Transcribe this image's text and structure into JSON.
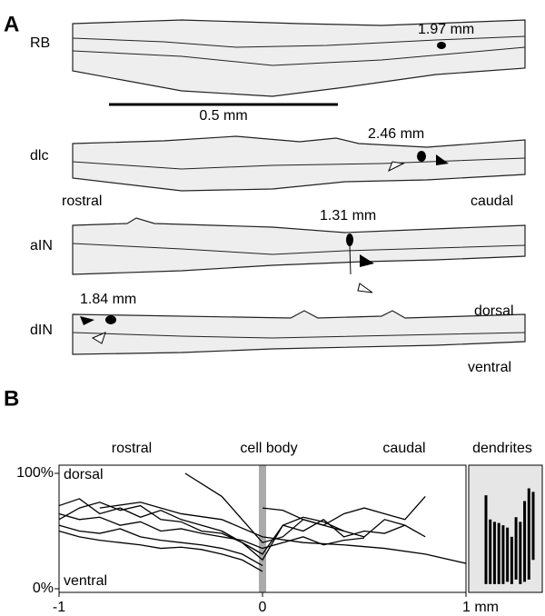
{
  "panel_a": {
    "label": "A",
    "scale": "0.5 mm",
    "rostral": "rostral",
    "caudal": "caudal",
    "dorsal": "dorsal",
    "ventral": "ventral",
    "rows": [
      {
        "label": "RB",
        "distance": "1.97 mm"
      },
      {
        "label": "dlc",
        "distance": "2.46 mm"
      },
      {
        "label": "aIN",
        "distance": "1.31 mm"
      },
      {
        "label": "dIN",
        "distance": "1.84 mm"
      }
    ]
  },
  "chart_data": {
    "type": "line",
    "panel_label": "B",
    "header": [
      "rostral",
      "cell body",
      "caudal"
    ],
    "annotations": [
      "dorsal",
      "ventral"
    ],
    "xlim": [
      -1,
      1
    ],
    "xticks": [
      -1,
      0,
      {
        "value": 1,
        "label": "1 mm"
      }
    ],
    "ylim": [
      0,
      100
    ],
    "yticks": [
      {
        "value": 0,
        "label": "0%"
      },
      {
        "value": 100,
        "label": "100%"
      }
    ],
    "color": "#000000",
    "band_color": "#aaaaaa",
    "series": [
      {
        "x": [
          -0.38,
          -0.2,
          -0.1,
          0,
          0.1,
          0.2,
          0.3,
          0.4,
          0.5,
          0.6,
          0.7,
          0.8
        ],
        "values": [
          100,
          80,
          60,
          40,
          45,
          60,
          55,
          65,
          70,
          65,
          60,
          80
        ]
      },
      {
        "x": [
          -1,
          -0.9,
          -0.8,
          -0.7,
          -0.6,
          -0.5,
          -0.4,
          -0.3,
          -0.2,
          -0.1,
          0
        ],
        "values": [
          72,
          78,
          65,
          70,
          62,
          68,
          60,
          55,
          50,
          40,
          30
        ]
      },
      {
        "x": [
          -1,
          -0.9,
          -0.8,
          -0.7,
          -0.6,
          -0.5,
          -0.4,
          -0.3,
          -0.2,
          -0.1,
          0,
          0.1,
          0.2,
          0.3,
          0.4,
          0.5
        ],
        "values": [
          65,
          60,
          62,
          55,
          58,
          50,
          52,
          48,
          45,
          42,
          35,
          40,
          45,
          38,
          42,
          44
        ]
      },
      {
        "x": [
          -1,
          -0.9,
          -0.8,
          -0.7,
          -0.6,
          -0.5,
          -0.4,
          -0.3,
          -0.2,
          -0.1,
          0
        ],
        "values": [
          55,
          50,
          48,
          52,
          45,
          42,
          40,
          38,
          35,
          30,
          20
        ]
      },
      {
        "x": [
          -1,
          -0.9,
          -0.8,
          -0.7,
          -0.6,
          -0.5,
          -0.4,
          -0.3,
          -0.2,
          -0.1,
          0,
          0.1,
          0.2,
          0.3,
          0.4,
          0.5,
          0.6,
          0.7
        ],
        "values": [
          60,
          70,
          75,
          68,
          72,
          60,
          58,
          50,
          48,
          40,
          25,
          55,
          50,
          60,
          45,
          50,
          48,
          55
        ]
      },
      {
        "x": [
          -1,
          -0.9,
          -0.8,
          -0.7,
          -0.6,
          -0.5,
          -0.4,
          -0.3,
          -0.2,
          -0.1,
          0
        ],
        "values": [
          50,
          45,
          42,
          40,
          38,
          35,
          36,
          34,
          30,
          25,
          15
        ]
      },
      {
        "x": [
          -0.8,
          -0.6,
          -0.4,
          -0.2,
          0,
          0.2,
          0.4,
          0.6,
          0.8,
          1
        ],
        "values": [
          70,
          75,
          65,
          60,
          45,
          40,
          38,
          35,
          30,
          22
        ]
      },
      {
        "x": [
          0,
          0.1,
          0.2,
          0.3,
          0.4,
          0.5,
          0.6,
          0.7,
          0.8
        ],
        "values": [
          70,
          68,
          60,
          55,
          50,
          45,
          60,
          55,
          45
        ]
      },
      {
        "x": [
          -0.2,
          -0.1,
          0,
          0.1,
          0.2,
          0.3,
          0.4
        ],
        "values": [
          50,
          40,
          30,
          55,
          62,
          58,
          50
        ]
      }
    ],
    "dendrite_title": "dendrites",
    "dendrite_ranges": [
      [
        4,
        81
      ],
      [
        4,
        60
      ],
      [
        4,
        58
      ],
      [
        4,
        57
      ],
      [
        4,
        55
      ],
      [
        6,
        53
      ],
      [
        4,
        45
      ],
      [
        8,
        62
      ],
      [
        4,
        58
      ],
      [
        6,
        76
      ],
      [
        8,
        87
      ],
      [
        25,
        84
      ]
    ]
  }
}
